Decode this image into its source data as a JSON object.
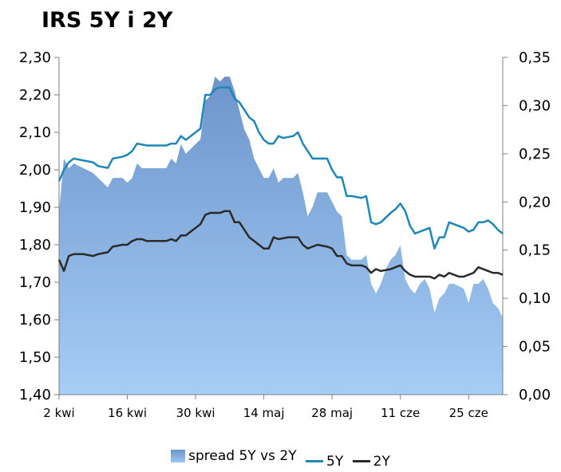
{
  "title": "IRS 5Y i 2Y",
  "colors": {
    "spread_top": "#6d95cc",
    "spread_bottom": "#a6cdf5",
    "line_5y": "#1f86b8",
    "line_2y": "#2b2b2b",
    "axis": "#7f7f7f"
  },
  "chart_data": {
    "type": "line",
    "title": "IRS 5Y i 2Y",
    "xlabel": "",
    "ylabel": "",
    "ylabel_right": "",
    "ylim_left": [
      1.4,
      2.3
    ],
    "ylim_right": [
      0.0,
      0.35
    ],
    "y_ticks_left": [
      "2,30",
      "2,20",
      "2,10",
      "2,00",
      "1,90",
      "1,80",
      "1,70",
      "1,60",
      "1,50",
      "1,40"
    ],
    "y_ticks_right": [
      "0,35",
      "0,30",
      "0,25",
      "0,20",
      "0,15",
      "0,10",
      "0,05",
      "0,00"
    ],
    "x_ticks": [
      {
        "day": 0,
        "label": "2 kwi"
      },
      {
        "day": 14,
        "label": "16 kwi"
      },
      {
        "day": 28,
        "label": "30 kwi"
      },
      {
        "day": 42,
        "label": "14 maj"
      },
      {
        "day": 56,
        "label": "28 maj"
      },
      {
        "day": 70,
        "label": "11 cze"
      },
      {
        "day": 84,
        "label": "25 cze"
      }
    ],
    "legend": [
      "spread 5Y vs 2Y",
      "5Y",
      "2Y"
    ],
    "series": [
      {
        "name": "5Y",
        "axis": "left",
        "points": [
          [
            0,
            1.97
          ],
          [
            1,
            2.0
          ],
          [
            2,
            2.02
          ],
          [
            3,
            2.03
          ],
          [
            5,
            2.025
          ],
          [
            7,
            2.02
          ],
          [
            8,
            2.01
          ],
          [
            10,
            2.005
          ],
          [
            11,
            2.03
          ],
          [
            13,
            2.035
          ],
          [
            14,
            2.04
          ],
          [
            15,
            2.05
          ],
          [
            16,
            2.07
          ],
          [
            18,
            2.065
          ],
          [
            20,
            2.065
          ],
          [
            22,
            2.065
          ],
          [
            23,
            2.07
          ],
          [
            24,
            2.07
          ],
          [
            25,
            2.09
          ],
          [
            26,
            2.08
          ],
          [
            27,
            2.09
          ],
          [
            28,
            2.1
          ],
          [
            29,
            2.11
          ],
          [
            30,
            2.2
          ],
          [
            31,
            2.2
          ],
          [
            32,
            2.215
          ],
          [
            33,
            2.22
          ],
          [
            35,
            2.22
          ],
          [
            36,
            2.19
          ],
          [
            37,
            2.18
          ],
          [
            38,
            2.16
          ],
          [
            39,
            2.14
          ],
          [
            40,
            2.13
          ],
          [
            41,
            2.1
          ],
          [
            42,
            2.08
          ],
          [
            43,
            2.07
          ],
          [
            44,
            2.07
          ],
          [
            45,
            2.09
          ],
          [
            46,
            2.085
          ],
          [
            48,
            2.09
          ],
          [
            49,
            2.1
          ],
          [
            50,
            2.07
          ],
          [
            51,
            2.05
          ],
          [
            52,
            2.03
          ],
          [
            53,
            2.03
          ],
          [
            55,
            2.03
          ],
          [
            56,
            2.0
          ],
          [
            57,
            1.98
          ],
          [
            58,
            1.98
          ],
          [
            59,
            1.93
          ],
          [
            60,
            1.93
          ],
          [
            62,
            1.925
          ],
          [
            63,
            1.93
          ],
          [
            64,
            1.86
          ],
          [
            65,
            1.855
          ],
          [
            66,
            1.86
          ],
          [
            68,
            1.885
          ],
          [
            69,
            1.895
          ],
          [
            70,
            1.91
          ],
          [
            71,
            1.89
          ],
          [
            72,
            1.85
          ],
          [
            73,
            1.83
          ],
          [
            74,
            1.835
          ],
          [
            75,
            1.84
          ],
          [
            76,
            1.845
          ],
          [
            77,
            1.79
          ],
          [
            78,
            1.82
          ],
          [
            79,
            1.82
          ],
          [
            80,
            1.86
          ],
          [
            81,
            1.855
          ],
          [
            83,
            1.845
          ],
          [
            84,
            1.835
          ],
          [
            85,
            1.84
          ],
          [
            86,
            1.86
          ],
          [
            87,
            1.86
          ],
          [
            88,
            1.865
          ],
          [
            89,
            1.855
          ],
          [
            90,
            1.84
          ],
          [
            91,
            1.83
          ]
        ]
      },
      {
        "name": "2Y",
        "axis": "left",
        "points": [
          [
            0,
            1.76
          ],
          [
            1,
            1.73
          ],
          [
            2,
            1.77
          ],
          [
            3,
            1.775
          ],
          [
            5,
            1.775
          ],
          [
            7,
            1.77
          ],
          [
            8,
            1.775
          ],
          [
            10,
            1.78
          ],
          [
            11,
            1.795
          ],
          [
            13,
            1.8
          ],
          [
            14,
            1.8
          ],
          [
            15,
            1.81
          ],
          [
            16,
            1.815
          ],
          [
            17,
            1.815
          ],
          [
            18,
            1.81
          ],
          [
            20,
            1.81
          ],
          [
            22,
            1.81
          ],
          [
            23,
            1.815
          ],
          [
            24,
            1.81
          ],
          [
            25,
            1.825
          ],
          [
            26,
            1.825
          ],
          [
            27,
            1.835
          ],
          [
            28,
            1.845
          ],
          [
            29,
            1.855
          ],
          [
            30,
            1.88
          ],
          [
            31,
            1.885
          ],
          [
            33,
            1.885
          ],
          [
            34,
            1.89
          ],
          [
            35,
            1.89
          ],
          [
            36,
            1.86
          ],
          [
            37,
            1.86
          ],
          [
            38,
            1.84
          ],
          [
            39,
            1.82
          ],
          [
            40,
            1.81
          ],
          [
            41,
            1.8
          ],
          [
            42,
            1.79
          ],
          [
            43,
            1.79
          ],
          [
            44,
            1.82
          ],
          [
            45,
            1.815
          ],
          [
            47,
            1.82
          ],
          [
            48,
            1.82
          ],
          [
            49,
            1.82
          ],
          [
            50,
            1.8
          ],
          [
            51,
            1.79
          ],
          [
            52,
            1.795
          ],
          [
            53,
            1.8
          ],
          [
            55,
            1.795
          ],
          [
            56,
            1.79
          ],
          [
            57,
            1.77
          ],
          [
            58,
            1.77
          ],
          [
            59,
            1.75
          ],
          [
            60,
            1.745
          ],
          [
            62,
            1.745
          ],
          [
            63,
            1.74
          ],
          [
            64,
            1.725
          ],
          [
            65,
            1.735
          ],
          [
            66,
            1.73
          ],
          [
            68,
            1.735
          ],
          [
            69,
            1.74
          ],
          [
            70,
            1.745
          ],
          [
            71,
            1.73
          ],
          [
            72,
            1.72
          ],
          [
            73,
            1.715
          ],
          [
            75,
            1.715
          ],
          [
            76,
            1.715
          ],
          [
            77,
            1.71
          ],
          [
            78,
            1.72
          ],
          [
            79,
            1.715
          ],
          [
            80,
            1.725
          ],
          [
            81,
            1.72
          ],
          [
            82,
            1.715
          ],
          [
            83,
            1.715
          ],
          [
            84,
            1.72
          ],
          [
            85,
            1.725
          ],
          [
            86,
            1.74
          ],
          [
            87,
            1.735
          ],
          [
            88,
            1.73
          ],
          [
            89,
            1.725
          ],
          [
            90,
            1.725
          ],
          [
            91,
            1.72
          ]
        ]
      },
      {
        "name": "spread 5Y vs 2Y",
        "axis": "right",
        "type": "area",
        "points": [
          [
            0,
            0.19
          ],
          [
            1,
            0.245
          ],
          [
            2,
            0.235
          ],
          [
            3,
            0.24
          ],
          [
            5,
            0.235
          ],
          [
            7,
            0.23
          ],
          [
            8,
            0.225
          ],
          [
            9,
            0.22
          ],
          [
            10,
            0.215
          ],
          [
            11,
            0.225
          ],
          [
            13,
            0.225
          ],
          [
            14,
            0.22
          ],
          [
            15,
            0.225
          ],
          [
            16,
            0.24
          ],
          [
            17,
            0.235
          ],
          [
            18,
            0.235
          ],
          [
            20,
            0.235
          ],
          [
            22,
            0.235
          ],
          [
            23,
            0.245
          ],
          [
            24,
            0.24
          ],
          [
            25,
            0.26
          ],
          [
            26,
            0.25
          ],
          [
            27,
            0.255
          ],
          [
            28,
            0.26
          ],
          [
            29,
            0.265
          ],
          [
            30,
            0.305
          ],
          [
            31,
            0.31
          ],
          [
            32,
            0.33
          ],
          [
            33,
            0.325
          ],
          [
            34,
            0.33
          ],
          [
            35,
            0.33
          ],
          [
            36,
            0.315
          ],
          [
            37,
            0.295
          ],
          [
            38,
            0.275
          ],
          [
            39,
            0.265
          ],
          [
            40,
            0.245
          ],
          [
            41,
            0.235
          ],
          [
            42,
            0.225
          ],
          [
            43,
            0.225
          ],
          [
            44,
            0.235
          ],
          [
            45,
            0.22
          ],
          [
            46,
            0.225
          ],
          [
            48,
            0.225
          ],
          [
            49,
            0.23
          ],
          [
            50,
            0.21
          ],
          [
            51,
            0.185
          ],
          [
            52,
            0.195
          ],
          [
            53,
            0.21
          ],
          [
            54,
            0.21
          ],
          [
            55,
            0.21
          ],
          [
            56,
            0.2
          ],
          [
            57,
            0.19
          ],
          [
            58,
            0.185
          ],
          [
            59,
            0.145
          ],
          [
            60,
            0.14
          ],
          [
            61,
            0.14
          ],
          [
            62,
            0.14
          ],
          [
            63,
            0.145
          ],
          [
            64,
            0.115
          ],
          [
            65,
            0.105
          ],
          [
            66,
            0.115
          ],
          [
            67,
            0.13
          ],
          [
            68,
            0.14
          ],
          [
            69,
            0.145
          ],
          [
            70,
            0.155
          ],
          [
            71,
            0.12
          ],
          [
            72,
            0.11
          ],
          [
            73,
            0.105
          ],
          [
            74,
            0.115
          ],
          [
            75,
            0.12
          ],
          [
            76,
            0.11
          ],
          [
            77,
            0.085
          ],
          [
            78,
            0.1
          ],
          [
            79,
            0.105
          ],
          [
            80,
            0.115
          ],
          [
            81,
            0.115
          ],
          [
            83,
            0.11
          ],
          [
            84,
            0.095
          ],
          [
            85,
            0.115
          ],
          [
            86,
            0.115
          ],
          [
            87,
            0.12
          ],
          [
            88,
            0.11
          ],
          [
            89,
            0.095
          ],
          [
            90,
            0.09
          ],
          [
            91,
            0.08
          ]
        ]
      }
    ]
  }
}
